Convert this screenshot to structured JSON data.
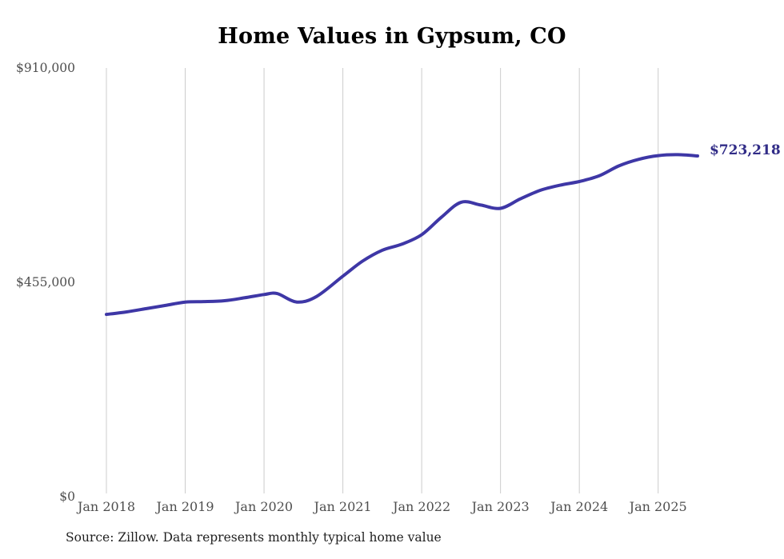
{
  "title": "Home Values in Gypsum, CO",
  "source_note": "Source: Zillow. Data represents monthly typical home value",
  "colors": {
    "line": "#3e37a6",
    "end_label_text": "#312c87",
    "grid": "#cccccc",
    "axis_text": "#4e4e4e",
    "title_text": "#000000",
    "source_text": "#1f1f1f",
    "background": "#ffffff"
  },
  "chart_data": {
    "type": "line",
    "title": "Home Values in Gypsum, CO",
    "xlabel": "",
    "ylabel": "",
    "unit": "USD",
    "ylim": [
      0,
      910000
    ],
    "grid": "vertical-only",
    "legend": "none",
    "y_ticks": [
      {
        "label": "$0",
        "value": 0
      },
      {
        "label": "$455,000",
        "value": 455000
      },
      {
        "label": "$910,000",
        "value": 910000
      }
    ],
    "x_ticks": [
      "Jan 2018",
      "Jan 2019",
      "Jan 2020",
      "Jan 2021",
      "Jan 2022",
      "Jan 2023",
      "Jan 2024",
      "Jan 2025"
    ],
    "final_value": 723218,
    "final_value_label": "$723,218",
    "series": [
      {
        "name": "Typical home value",
        "points": [
          {
            "date": "2018-01",
            "value": 387000
          },
          {
            "date": "2018-04",
            "value": 392000
          },
          {
            "date": "2018-07",
            "value": 399000
          },
          {
            "date": "2018-10",
            "value": 406000
          },
          {
            "date": "2019-01",
            "value": 413000
          },
          {
            "date": "2019-04",
            "value": 414000
          },
          {
            "date": "2019-07",
            "value": 416000
          },
          {
            "date": "2019-10",
            "value": 422000
          },
          {
            "date": "2020-01",
            "value": 429000
          },
          {
            "date": "2020-03",
            "value": 431000
          },
          {
            "date": "2020-06",
            "value": 413000
          },
          {
            "date": "2020-09",
            "value": 425000
          },
          {
            "date": "2021-01",
            "value": 468000
          },
          {
            "date": "2021-04",
            "value": 500000
          },
          {
            "date": "2021-07",
            "value": 523000
          },
          {
            "date": "2021-10",
            "value": 536000
          },
          {
            "date": "2022-01",
            "value": 556000
          },
          {
            "date": "2022-04",
            "value": 593000
          },
          {
            "date": "2022-07",
            "value": 625000
          },
          {
            "date": "2022-10",
            "value": 619000
          },
          {
            "date": "2023-01",
            "value": 612000
          },
          {
            "date": "2023-04",
            "value": 632000
          },
          {
            "date": "2023-07",
            "value": 650000
          },
          {
            "date": "2023-10",
            "value": 661000
          },
          {
            "date": "2024-01",
            "value": 669000
          },
          {
            "date": "2024-04",
            "value": 681000
          },
          {
            "date": "2024-07",
            "value": 702000
          },
          {
            "date": "2024-10",
            "value": 716000
          },
          {
            "date": "2025-01",
            "value": 724000
          },
          {
            "date": "2025-04",
            "value": 726000
          },
          {
            "date": "2025-07",
            "value": 723218
          }
        ]
      }
    ]
  }
}
